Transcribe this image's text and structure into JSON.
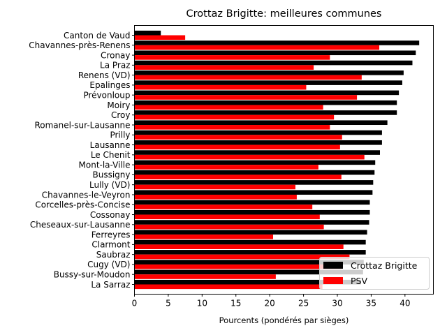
{
  "chart_data": {
    "type": "bar",
    "orientation": "horizontal",
    "title": "Crottaz Brigitte: meilleures communes",
    "xlabel": "Pourcents (pondérés par sièges)",
    "ylabel": "",
    "xlim": [
      0,
      44.2
    ],
    "xticks": [
      0,
      5,
      10,
      15,
      20,
      25,
      30,
      35,
      40
    ],
    "grid": false,
    "legend_position": "lower right",
    "categories": [
      "Canton de Vaud",
      "Chavannes-près-Renens",
      "Cronay",
      "La Praz",
      "Renens (VD)",
      "Epalinges",
      "Prévonloup",
      "Moiry",
      "Croy",
      "Romanel-sur-Lausanne",
      "Prilly",
      "Lausanne",
      "Le Chenit",
      "Mont-la-Ville",
      "Bussigny",
      "Lully (VD)",
      "Chavannes-le-Veyron",
      "Corcelles-près-Concise",
      "Cossonay",
      "Cheseaux-sur-Lausanne",
      "Ferreyres",
      "Clarmont",
      "Saubraz",
      "Cugy (VD)",
      "Bussy-sur-Moudon",
      "La Sarraz"
    ],
    "series": [
      {
        "name": "Crottaz Brigitte",
        "color": "#000000",
        "values": [
          3.9,
          42.1,
          41.6,
          41.1,
          39.8,
          39.6,
          39.1,
          38.8,
          38.8,
          37.4,
          36.6,
          36.6,
          36.3,
          35.6,
          35.5,
          35.3,
          35.2,
          34.8,
          34.8,
          34.7,
          34.4,
          34.2,
          34.2,
          33.9,
          33.8,
          33.5
        ]
      },
      {
        "name": "PSV",
        "color": "#ff0000",
        "values": [
          7.5,
          36.2,
          28.9,
          26.5,
          33.6,
          25.4,
          32.9,
          27.9,
          29.5,
          28.9,
          30.7,
          30.4,
          34.0,
          27.2,
          30.6,
          23.8,
          24.0,
          26.3,
          27.4,
          28.0,
          20.5,
          30.9,
          31.8,
          30.6,
          20.9,
          27.8
        ]
      }
    ]
  }
}
